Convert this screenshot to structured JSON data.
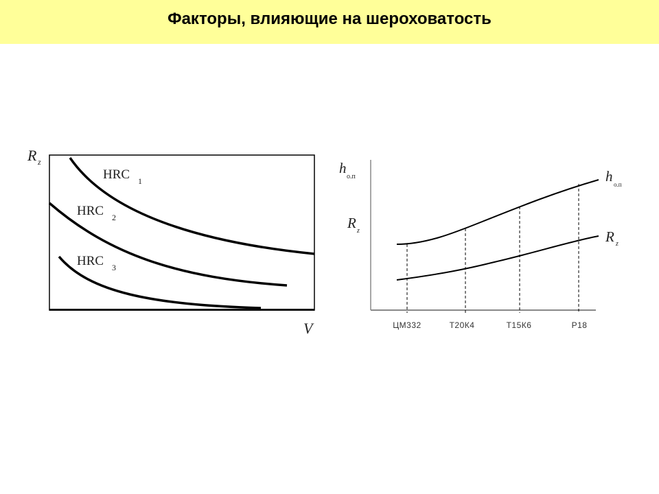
{
  "title": "Факторы, влияющие на шероховатость",
  "left_diagram": {
    "y_axis_label": "R",
    "y_axis_label_sub": "z",
    "x_axis_label": "V",
    "curves": [
      {
        "label": "HRC",
        "index": "1"
      },
      {
        "label": "HRC",
        "index": "2"
      },
      {
        "label": "HRC",
        "index": "3"
      }
    ]
  },
  "right_diagram": {
    "y_label_top": "h",
    "y_label_top_sub": "о.п",
    "y_label_bottom": "R",
    "y_label_bottom_sub": "z",
    "curve_top_label": "h",
    "curve_top_label_sub": "о.п",
    "curve_bottom_label": "R",
    "curve_bottom_label_sub": "z",
    "categories": [
      "ЦМ332",
      "Т20К4",
      "Т15К6",
      "Р18"
    ]
  },
  "colors": {
    "title_bar": "#ffff99",
    "lines": "#000000"
  }
}
